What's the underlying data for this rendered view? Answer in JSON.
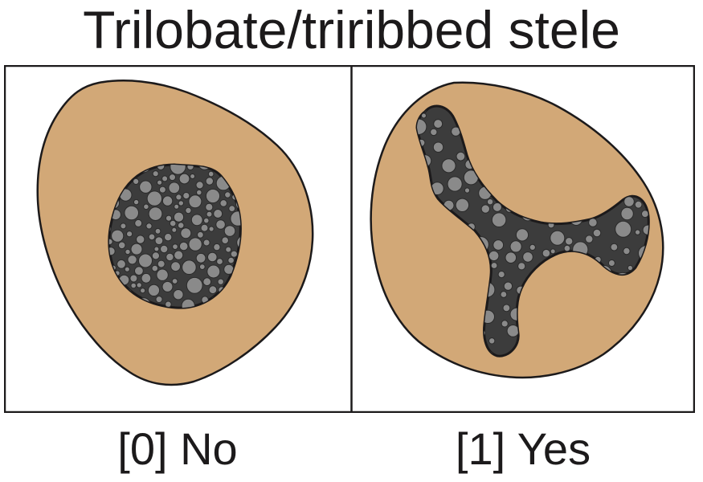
{
  "title": "Trilobate/triribbed stele",
  "panels": [
    {
      "label": "[0] No"
    },
    {
      "label": "[1] Yes"
    }
  ],
  "colors": {
    "cortex": "#d2a877",
    "stele_background": "#3c3c3c",
    "cells": "#8a8a8a",
    "outline": "#1c1a1b"
  }
}
